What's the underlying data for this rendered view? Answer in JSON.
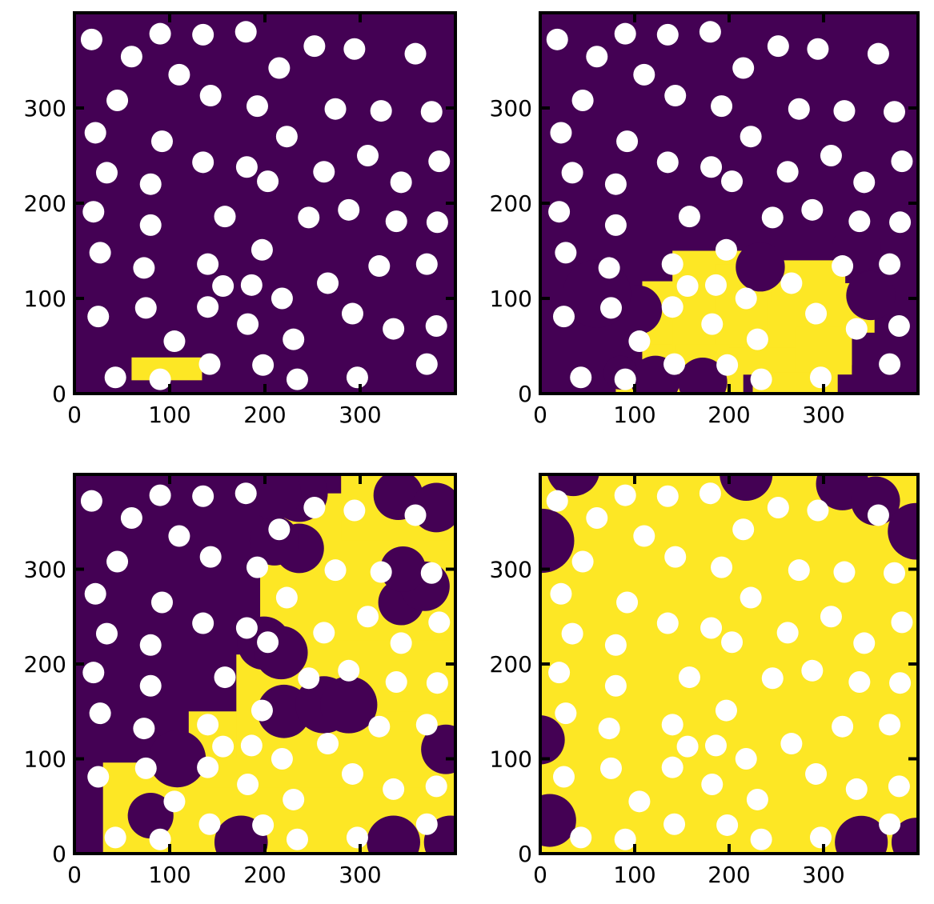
{
  "colors": {
    "background": "#ffffff",
    "outside": "#440154",
    "filled": "#fde725",
    "particle": "#ffffff",
    "axis": "#000000"
  },
  "chart_data": [
    {
      "type": "heatmap",
      "panel": "top-left",
      "title": "",
      "xlabel": "",
      "ylabel": "",
      "xlim": [
        0,
        400
      ],
      "ylim": [
        0,
        400
      ],
      "xticks": [
        0,
        100,
        200,
        300
      ],
      "yticks": [
        0,
        100,
        200,
        300
      ],
      "grid": false,
      "particles": [
        [
          18,
          372
        ],
        [
          90,
          378
        ],
        [
          135,
          377
        ],
        [
          180,
          380
        ],
        [
          60,
          354
        ],
        [
          110,
          335
        ],
        [
          215,
          342
        ],
        [
          252,
          365
        ],
        [
          294,
          362
        ],
        [
          358,
          357
        ],
        [
          45,
          308
        ],
        [
          143,
          313
        ],
        [
          192,
          302
        ],
        [
          274,
          299
        ],
        [
          322,
          297
        ],
        [
          375,
          296
        ],
        [
          22,
          274
        ],
        [
          92,
          265
        ],
        [
          34,
          232
        ],
        [
          135,
          243
        ],
        [
          181,
          238
        ],
        [
          203,
          223
        ],
        [
          223,
          270
        ],
        [
          262,
          233
        ],
        [
          308,
          250
        ],
        [
          343,
          222
        ],
        [
          383,
          244
        ],
        [
          20,
          191
        ],
        [
          80,
          220
        ],
        [
          158,
          186
        ],
        [
          246,
          185
        ],
        [
          288,
          193
        ],
        [
          338,
          181
        ],
        [
          381,
          180
        ],
        [
          80,
          177
        ],
        [
          27,
          148
        ],
        [
          73,
          132
        ],
        [
          140,
          136
        ],
        [
          197,
          151
        ],
        [
          266,
          116
        ],
        [
          320,
          134
        ],
        [
          370,
          136
        ],
        [
          25,
          81
        ],
        [
          75,
          90
        ],
        [
          156,
          113
        ],
        [
          186,
          114
        ],
        [
          218,
          100
        ],
        [
          140,
          91
        ],
        [
          182,
          73
        ],
        [
          292,
          84
        ],
        [
          335,
          68
        ],
        [
          380,
          71
        ],
        [
          105,
          55
        ],
        [
          230,
          57
        ],
        [
          43,
          17
        ],
        [
          90,
          15
        ],
        [
          142,
          31
        ],
        [
          198,
          30
        ],
        [
          234,
          15
        ],
        [
          297,
          17
        ],
        [
          370,
          31
        ]
      ],
      "filled_regions": [
        [
          60,
          14,
          74,
          24
        ]
      ],
      "outside_blobs": []
    },
    {
      "type": "heatmap",
      "panel": "top-right",
      "title": "",
      "xlabel": "",
      "ylabel": "",
      "xlim": [
        0,
        400
      ],
      "ylim": [
        0,
        400
      ],
      "xticks": [
        0,
        100,
        200,
        300
      ],
      "yticks": [
        0,
        100,
        200,
        300
      ],
      "grid": false,
      "particles": [
        [
          18,
          372
        ],
        [
          90,
          378
        ],
        [
          135,
          377
        ],
        [
          180,
          380
        ],
        [
          60,
          354
        ],
        [
          110,
          335
        ],
        [
          215,
          342
        ],
        [
          252,
          365
        ],
        [
          294,
          362
        ],
        [
          358,
          357
        ],
        [
          45,
          308
        ],
        [
          143,
          313
        ],
        [
          192,
          302
        ],
        [
          274,
          299
        ],
        [
          322,
          297
        ],
        [
          375,
          296
        ],
        [
          22,
          274
        ],
        [
          92,
          265
        ],
        [
          34,
          232
        ],
        [
          135,
          243
        ],
        [
          181,
          238
        ],
        [
          203,
          223
        ],
        [
          223,
          270
        ],
        [
          262,
          233
        ],
        [
          308,
          250
        ],
        [
          343,
          222
        ],
        [
          383,
          244
        ],
        [
          20,
          191
        ],
        [
          80,
          220
        ],
        [
          158,
          186
        ],
        [
          246,
          185
        ],
        [
          288,
          193
        ],
        [
          338,
          181
        ],
        [
          381,
          180
        ],
        [
          80,
          177
        ],
        [
          27,
          148
        ],
        [
          73,
          132
        ],
        [
          140,
          136
        ],
        [
          197,
          151
        ],
        [
          266,
          116
        ],
        [
          320,
          134
        ],
        [
          370,
          136
        ],
        [
          25,
          81
        ],
        [
          75,
          90
        ],
        [
          156,
          113
        ],
        [
          186,
          114
        ],
        [
          218,
          100
        ],
        [
          140,
          91
        ],
        [
          182,
          73
        ],
        [
          292,
          84
        ],
        [
          335,
          68
        ],
        [
          380,
          71
        ],
        [
          105,
          55
        ],
        [
          230,
          57
        ],
        [
          43,
          17
        ],
        [
          90,
          15
        ],
        [
          142,
          31
        ],
        [
          198,
          30
        ],
        [
          234,
          15
        ],
        [
          297,
          17
        ],
        [
          370,
          31
        ]
      ],
      "filled_regions": [
        [
          108,
          36,
          116,
          82
        ],
        [
          100,
          52,
          90,
          36
        ],
        [
          140,
          40,
          96,
          110
        ],
        [
          185,
          28,
          80,
          108
        ],
        [
          240,
          30,
          90,
          80
        ],
        [
          300,
          64,
          54,
          52
        ],
        [
          245,
          96,
          78,
          44
        ],
        [
          143,
          20,
          80,
          32
        ],
        [
          200,
          20,
          80,
          28
        ],
        [
          270,
          20,
          60,
          50
        ],
        [
          80,
          0,
          16,
          14
        ],
        [
          95,
          0,
          120,
          24
        ],
        [
          225,
          0,
          90,
          22
        ]
      ],
      "outside_blobs": [
        [
          122,
          14,
          26
        ],
        [
          172,
          12,
          26
        ],
        [
          85,
          22,
          18
        ],
        [
          103,
          88,
          26
        ],
        [
          60,
          105,
          36
        ],
        [
          350,
          103,
          26
        ],
        [
          233,
          133,
          26
        ],
        [
          335,
          153,
          26
        ]
      ]
    },
    {
      "type": "heatmap",
      "panel": "bottom-left",
      "title": "",
      "xlabel": "",
      "ylabel": "",
      "xlim": [
        0,
        400
      ],
      "ylim": [
        0,
        400
      ],
      "xticks": [
        0,
        100,
        200,
        300
      ],
      "yticks": [
        0,
        100,
        200,
        300
      ],
      "grid": false,
      "particles": [
        [
          18,
          372
        ],
        [
          90,
          378
        ],
        [
          135,
          377
        ],
        [
          180,
          380
        ],
        [
          60,
          354
        ],
        [
          110,
          335
        ],
        [
          215,
          342
        ],
        [
          252,
          365
        ],
        [
          294,
          362
        ],
        [
          358,
          357
        ],
        [
          45,
          308
        ],
        [
          143,
          313
        ],
        [
          192,
          302
        ],
        [
          274,
          299
        ],
        [
          322,
          297
        ],
        [
          375,
          296
        ],
        [
          22,
          274
        ],
        [
          92,
          265
        ],
        [
          34,
          232
        ],
        [
          135,
          243
        ],
        [
          181,
          238
        ],
        [
          203,
          223
        ],
        [
          223,
          270
        ],
        [
          262,
          233
        ],
        [
          308,
          250
        ],
        [
          343,
          222
        ],
        [
          383,
          244
        ],
        [
          20,
          191
        ],
        [
          80,
          220
        ],
        [
          158,
          186
        ],
        [
          246,
          185
        ],
        [
          288,
          193
        ],
        [
          338,
          181
        ],
        [
          381,
          180
        ],
        [
          80,
          177
        ],
        [
          27,
          148
        ],
        [
          73,
          132
        ],
        [
          140,
          136
        ],
        [
          197,
          151
        ],
        [
          266,
          116
        ],
        [
          320,
          134
        ],
        [
          370,
          136
        ],
        [
          25,
          81
        ],
        [
          75,
          90
        ],
        [
          156,
          113
        ],
        [
          186,
          114
        ],
        [
          218,
          100
        ],
        [
          140,
          91
        ],
        [
          182,
          73
        ],
        [
          292,
          84
        ],
        [
          335,
          68
        ],
        [
          380,
          71
        ],
        [
          105,
          55
        ],
        [
          230,
          57
        ],
        [
          43,
          17
        ],
        [
          90,
          15
        ],
        [
          142,
          31
        ],
        [
          198,
          30
        ],
        [
          234,
          15
        ],
        [
          297,
          17
        ],
        [
          370,
          31
        ]
      ],
      "filled_regions": [
        [
          30,
          0,
          370,
          96
        ],
        [
          120,
          70,
          280,
          80
        ],
        [
          170,
          100,
          230,
          110
        ],
        [
          200,
          150,
          200,
          115
        ],
        [
          195,
          225,
          205,
          90
        ],
        [
          215,
          300,
          185,
          80
        ],
        [
          280,
          330,
          120,
          70
        ]
      ],
      "outside_blobs": [
        [
          175,
          12,
          28
        ],
        [
          335,
          12,
          28
        ],
        [
          395,
          12,
          28
        ],
        [
          80,
          40,
          24
        ],
        [
          108,
          100,
          30
        ],
        [
          390,
          110,
          26
        ],
        [
          220,
          150,
          28
        ],
        [
          262,
          157,
          30
        ],
        [
          288,
          157,
          30
        ],
        [
          199,
          222,
          28
        ],
        [
          217,
          212,
          28
        ],
        [
          343,
          265,
          24
        ],
        [
          368,
          282,
          26
        ],
        [
          345,
          300,
          24
        ],
        [
          236,
          322,
          26
        ],
        [
          210,
          330,
          26
        ],
        [
          236,
          380,
          30
        ],
        [
          210,
          380,
          28
        ],
        [
          340,
          378,
          26
        ],
        [
          380,
          365,
          26
        ]
      ]
    },
    {
      "type": "heatmap",
      "panel": "bottom-right",
      "title": "",
      "xlabel": "",
      "ylabel": "",
      "xlim": [
        0,
        400
      ],
      "ylim": [
        0,
        400
      ],
      "xticks": [
        0,
        100,
        200,
        300
      ],
      "yticks": [
        0,
        100,
        200,
        300
      ],
      "grid": false,
      "particles": [
        [
          18,
          372
        ],
        [
          90,
          378
        ],
        [
          135,
          377
        ],
        [
          180,
          380
        ],
        [
          60,
          354
        ],
        [
          110,
          335
        ],
        [
          215,
          342
        ],
        [
          252,
          365
        ],
        [
          294,
          362
        ],
        [
          358,
          357
        ],
        [
          45,
          308
        ],
        [
          143,
          313
        ],
        [
          192,
          302
        ],
        [
          274,
          299
        ],
        [
          322,
          297
        ],
        [
          375,
          296
        ],
        [
          22,
          274
        ],
        [
          92,
          265
        ],
        [
          34,
          232
        ],
        [
          135,
          243
        ],
        [
          181,
          238
        ],
        [
          203,
          223
        ],
        [
          223,
          270
        ],
        [
          262,
          233
        ],
        [
          308,
          250
        ],
        [
          343,
          222
        ],
        [
          383,
          244
        ],
        [
          20,
          191
        ],
        [
          80,
          220
        ],
        [
          158,
          186
        ],
        [
          246,
          185
        ],
        [
          288,
          193
        ],
        [
          338,
          181
        ],
        [
          381,
          180
        ],
        [
          80,
          177
        ],
        [
          27,
          148
        ],
        [
          73,
          132
        ],
        [
          140,
          136
        ],
        [
          197,
          151
        ],
        [
          266,
          116
        ],
        [
          320,
          134
        ],
        [
          370,
          136
        ],
        [
          25,
          81
        ],
        [
          75,
          90
        ],
        [
          156,
          113
        ],
        [
          186,
          114
        ],
        [
          218,
          100
        ],
        [
          140,
          91
        ],
        [
          182,
          73
        ],
        [
          292,
          84
        ],
        [
          335,
          68
        ],
        [
          380,
          71
        ],
        [
          105,
          55
        ],
        [
          230,
          57
        ],
        [
          43,
          17
        ],
        [
          90,
          15
        ],
        [
          142,
          31
        ],
        [
          198,
          30
        ],
        [
          234,
          15
        ],
        [
          297,
          17
        ],
        [
          370,
          31
        ]
      ],
      "filled_regions": [
        [
          0,
          0,
          400,
          400
        ]
      ],
      "outside_blobs": [
        [
          0,
          120,
          26
        ],
        [
          10,
          35,
          28
        ],
        [
          340,
          12,
          28
        ],
        [
          398,
          12,
          26
        ],
        [
          2,
          330,
          34
        ],
        [
          35,
          405,
          28
        ],
        [
          218,
          400,
          28
        ],
        [
          320,
          390,
          28
        ],
        [
          355,
          372,
          26
        ],
        [
          398,
          340,
          30
        ]
      ]
    }
  ]
}
